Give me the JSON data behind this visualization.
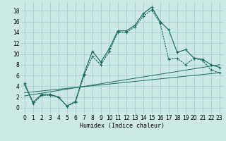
{
  "title": "",
  "xlabel": "Humidex (Indice chaleur)",
  "ylabel": "",
  "background_color": "#cce9e6",
  "grid_color": "#aad4d0",
  "line_color": "#1a6b5e",
  "xlim": [
    -0.5,
    23.5
  ],
  "ylim": [
    -1.2,
    19.5
  ],
  "yticks": [
    0,
    2,
    4,
    6,
    8,
    10,
    12,
    14,
    16,
    18
  ],
  "xtick_labels": [
    "0",
    "1",
    "2",
    "3",
    "4",
    "5",
    "6",
    "7",
    "8",
    "9",
    "10",
    "11",
    "12",
    "13",
    "14",
    "15",
    "16",
    "17",
    "18",
    "19",
    "20",
    "21",
    "22",
    "23"
  ],
  "curve1_x": [
    0,
    1,
    2,
    3,
    4,
    5,
    6,
    7,
    8,
    9,
    10,
    11,
    12,
    13,
    14,
    15,
    16,
    17,
    18,
    19,
    20,
    21,
    22,
    23
  ],
  "curve1_y": [
    4.5,
    1.0,
    2.5,
    2.5,
    2.0,
    0.3,
    1.2,
    6.3,
    10.5,
    8.5,
    11.0,
    14.3,
    14.3,
    15.3,
    17.5,
    18.7,
    16.0,
    14.5,
    10.3,
    10.8,
    9.2,
    9.0,
    8.0,
    7.5
  ],
  "curve2_x": [
    0,
    1,
    2,
    3,
    4,
    5,
    6,
    7,
    8,
    9,
    10,
    11,
    12,
    13,
    14,
    15,
    16,
    17,
    18,
    19,
    20,
    21,
    22,
    23
  ],
  "curve2_y": [
    4.3,
    0.8,
    2.3,
    2.3,
    2.0,
    0.3,
    1.0,
    6.0,
    9.5,
    8.0,
    10.5,
    14.0,
    14.0,
    15.0,
    17.0,
    18.2,
    15.7,
    9.0,
    9.2,
    8.0,
    9.2,
    8.8,
    7.0,
    6.5
  ],
  "regline1_x": [
    0,
    23
  ],
  "regline1_y": [
    2.2,
    8.0
  ],
  "regline2_x": [
    0,
    23
  ],
  "regline2_y": [
    2.8,
    6.5
  ]
}
